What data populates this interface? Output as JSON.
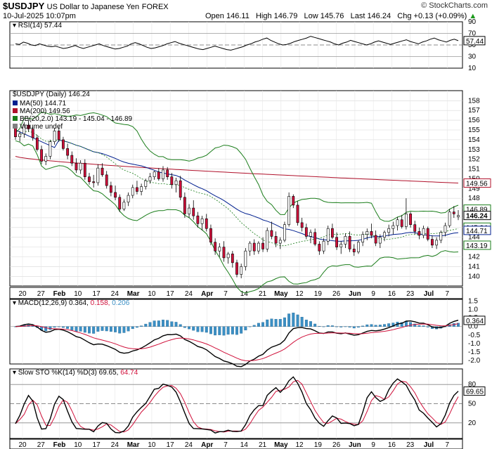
{
  "header": {
    "symbol": "$USDJPY",
    "name": "US Dollar to Japanese Yen",
    "exchange": "FOREX",
    "date": "10-Jul-2025 10:07pm",
    "watermark": "© StockCharts.com",
    "quote": {
      "open_label": "Open",
      "open": "146.11",
      "high_label": "High",
      "high": "146.79",
      "low_label": "Low",
      "low": "145.76",
      "last_label": "Last",
      "last": "146.24",
      "chg_label": "Chg",
      "chg": "+0.13 (+0.09%)",
      "chg_arrow": "▲"
    }
  },
  "rsi": {
    "label": "RSI(14) 57.44",
    "value": "57.44",
    "ticks": [
      "90",
      "70",
      "50",
      "30",
      "10"
    ],
    "values": [
      52,
      51,
      55,
      53,
      50,
      49,
      52,
      50,
      48,
      47,
      48,
      46,
      44,
      45,
      47,
      49,
      46,
      44,
      46,
      48,
      50,
      52,
      49,
      47,
      45,
      43,
      44,
      46,
      48,
      52,
      54,
      52,
      49,
      46,
      44,
      45,
      47,
      49,
      52,
      54,
      56,
      53,
      51,
      49,
      47,
      45,
      43,
      42,
      44,
      46,
      48,
      46,
      44,
      42,
      41,
      43,
      45,
      47,
      50,
      52,
      55,
      57,
      60,
      62,
      58,
      55,
      52,
      50,
      51,
      53,
      56,
      58,
      60,
      62,
      65,
      63,
      61,
      59,
      57,
      55,
      52,
      50,
      53,
      55,
      58,
      56,
      54,
      52,
      50,
      52,
      55,
      57,
      55,
      53,
      51,
      53,
      55,
      57,
      59,
      56,
      54,
      52,
      55,
      57,
      60,
      62,
      59,
      57,
      55,
      58,
      60,
      57.44
    ]
  },
  "price": {
    "label": "$USDJPY (Daily) 146.24",
    "legend": [
      {
        "text": "MA(50) 144.71",
        "color": "#001f8f"
      },
      {
        "text": "MA(200) 149.56",
        "color": "#b0102a"
      },
      {
        "text": "BB(20,2.0) 143.19 - 145.04 - 146.89",
        "color": "#1a7d1a"
      },
      {
        "text": "Volume undef",
        "color": "#808080"
      }
    ],
    "yticks": [
      "158",
      "157",
      "156",
      "155",
      "154",
      "153",
      "152",
      "151",
      "150",
      "149",
      "148",
      "147",
      "146",
      "145",
      "144",
      "143",
      "142",
      "141",
      "140"
    ],
    "badges": [
      {
        "text": "149.56",
        "value": 149.56,
        "color": "#b0102a"
      },
      {
        "text": "146.89",
        "value": 146.89,
        "color": "#1a7d1a"
      },
      {
        "text": "146.24",
        "value": 146.24,
        "color": "#000"
      },
      {
        "text": "145.04",
        "value": 145.04,
        "color": "#1a7d1a"
      },
      {
        "text": "144.71",
        "value": 144.71,
        "color": "#001f8f"
      },
      {
        "text": "143.19",
        "value": 143.19,
        "color": "#1a7d1a"
      }
    ],
    "colors": {
      "up": "#ffffff",
      "down": "#d0103a",
      "outline": "#000000",
      "ma50": "#001f8f",
      "ma200": "#b0102a",
      "bb": "#1a7d1a"
    }
  },
  "xaxis": {
    "labels": [
      "20",
      "27",
      "Feb",
      "10",
      "17",
      "24",
      "Mar",
      "10",
      "17",
      "24",
      "Apr",
      "7",
      "14",
      "21",
      "May",
      "12",
      "19",
      "26",
      "Jun",
      "9",
      "16",
      "23",
      "Jul",
      "7"
    ],
    "bold": [
      "Feb",
      "Mar",
      "Apr",
      "May",
      "Jun",
      "Jul"
    ]
  },
  "macd": {
    "label": "MACD(12,26,9) 0.364, 0.158, 0.206",
    "v1": "0.364",
    "v2": "0.158",
    "v3": "0.206",
    "ticks": [
      "1.5",
      "1.0",
      "0.5",
      "0.0",
      "-0.5",
      "-1.0",
      "-1.5",
      "-2.0"
    ],
    "colors": {
      "macd": "#000",
      "signal": "#d0103a",
      "hist": "#3b8fc4"
    }
  },
  "sto": {
    "label": "Slow STO %K(14) %D(3) 69.65, 64.74",
    "k": "69.65",
    "d": "64.74",
    "ticks": [
      "80",
      "50",
      "20"
    ]
  },
  "chart_data": [
    {
      "type": "line",
      "title": "RSI(14) 57.44",
      "y": "see rsi.values",
      "ylim": [
        10,
        90
      ]
    },
    {
      "type": "candlestick",
      "title": "$USDJPY (Daily) 146.24",
      "ylim": [
        140,
        158
      ],
      "ohlc": [
        [
          155.2,
          155.6,
          154.0,
          154.3
        ],
        [
          154.3,
          154.9,
          153.8,
          154.6
        ],
        [
          154.6,
          155.8,
          154.2,
          155.5
        ],
        [
          155.5,
          156.0,
          154.8,
          155.1
        ],
        [
          155.1,
          155.3,
          153.9,
          154.2
        ],
        [
          154.2,
          154.5,
          152.8,
          153.0
        ],
        [
          153.0,
          153.4,
          151.5,
          151.8
        ],
        [
          151.8,
          152.6,
          151.4,
          152.3
        ],
        [
          152.3,
          154.0,
          152.0,
          153.8
        ],
        [
          153.8,
          155.2,
          153.5,
          154.9
        ],
        [
          154.9,
          155.3,
          153.8,
          154.0
        ],
        [
          154.0,
          154.3,
          152.9,
          153.1
        ],
        [
          153.1,
          153.6,
          152.0,
          152.4
        ],
        [
          152.4,
          152.8,
          151.3,
          151.6
        ],
        [
          151.6,
          152.1,
          150.6,
          150.9
        ],
        [
          150.9,
          151.9,
          150.5,
          151.6
        ],
        [
          151.6,
          152.0,
          149.9,
          150.2
        ],
        [
          150.2,
          150.6,
          149.4,
          149.7
        ],
        [
          149.7,
          150.4,
          149.1,
          149.6
        ],
        [
          149.6,
          151.5,
          149.3,
          151.1
        ],
        [
          151.1,
          151.6,
          150.2,
          150.4
        ],
        [
          150.4,
          150.8,
          149.0,
          149.3
        ],
        [
          149.3,
          149.7,
          148.2,
          148.6
        ],
        [
          148.6,
          149.3,
          147.8,
          148.1
        ],
        [
          148.1,
          148.4,
          146.6,
          146.9
        ],
        [
          146.9,
          147.9,
          146.7,
          147.6
        ],
        [
          147.6,
          148.6,
          147.2,
          148.3
        ],
        [
          148.3,
          149.4,
          148.0,
          149.1
        ],
        [
          149.1,
          149.8,
          148.4,
          148.7
        ],
        [
          148.7,
          149.5,
          148.3,
          149.2
        ],
        [
          149.2,
          150.0,
          148.9,
          149.8
        ],
        [
          149.8,
          150.6,
          149.5,
          150.2
        ],
        [
          150.2,
          150.8,
          149.9,
          150.7
        ],
        [
          150.7,
          151.1,
          149.8,
          150.0
        ],
        [
          150.0,
          151.3,
          149.7,
          150.9
        ],
        [
          150.9,
          151.2,
          149.9,
          150.2
        ],
        [
          150.2,
          150.6,
          149.0,
          149.4
        ],
        [
          149.4,
          150.1,
          148.6,
          149.8
        ],
        [
          149.8,
          150.3,
          147.8,
          148.1
        ],
        [
          148.1,
          148.6,
          146.0,
          146.4
        ],
        [
          146.4,
          147.4,
          146.0,
          147.0
        ],
        [
          147.0,
          147.8,
          145.8,
          146.2
        ],
        [
          146.2,
          146.6,
          145.0,
          145.4
        ],
        [
          145.4,
          146.2,
          144.7,
          145.9
        ],
        [
          145.9,
          146.4,
          144.6,
          144.9
        ],
        [
          144.9,
          145.3,
          143.2,
          143.5
        ],
        [
          143.5,
          143.9,
          142.2,
          142.6
        ],
        [
          142.6,
          143.4,
          142.0,
          143.0
        ],
        [
          143.0,
          143.6,
          141.5,
          141.9
        ],
        [
          141.9,
          142.5,
          141.3,
          142.3
        ],
        [
          142.3,
          142.6,
          140.9,
          141.4
        ],
        [
          141.4,
          141.7,
          139.9,
          140.2
        ],
        [
          140.2,
          141.3,
          139.8,
          141.0
        ],
        [
          141.0,
          142.9,
          140.6,
          142.6
        ],
        [
          142.6,
          143.6,
          142.1,
          143.4
        ],
        [
          143.4,
          143.8,
          142.2,
          142.6
        ],
        [
          142.6,
          143.6,
          142.3,
          143.4
        ],
        [
          143.4,
          144.0,
          142.5,
          142.8
        ],
        [
          142.8,
          145.0,
          142.5,
          144.7
        ],
        [
          144.7,
          145.6,
          143.8,
          144.1
        ],
        [
          144.1,
          144.6,
          143.0,
          143.4
        ],
        [
          143.4,
          144.0,
          142.8,
          143.7
        ],
        [
          143.7,
          145.6,
          143.5,
          145.3
        ],
        [
          145.3,
          148.6,
          145.1,
          148.2
        ],
        [
          148.2,
          148.4,
          147.0,
          147.3
        ],
        [
          147.3,
          147.7,
          145.2,
          145.5
        ],
        [
          145.5,
          146.0,
          144.6,
          145.0
        ],
        [
          145.0,
          145.4,
          143.8,
          144.1
        ],
        [
          144.1,
          144.8,
          143.4,
          144.5
        ],
        [
          144.5,
          144.9,
          143.1,
          143.3
        ],
        [
          143.3,
          143.6,
          142.2,
          142.6
        ],
        [
          142.6,
          143.9,
          142.3,
          143.6
        ],
        [
          143.6,
          145.2,
          143.2,
          144.9
        ],
        [
          144.9,
          145.4,
          143.8,
          144.0
        ],
        [
          144.0,
          144.5,
          142.7,
          143.0
        ],
        [
          143.0,
          143.6,
          142.3,
          143.3
        ],
        [
          143.3,
          144.4,
          142.9,
          144.1
        ],
        [
          144.1,
          144.6,
          142.5,
          142.8
        ],
        [
          142.8,
          143.3,
          142.1,
          142.5
        ],
        [
          142.5,
          143.7,
          142.3,
          143.5
        ],
        [
          143.5,
          144.6,
          143.1,
          144.3
        ],
        [
          144.3,
          144.9,
          143.7,
          144.6
        ],
        [
          144.6,
          145.4,
          143.9,
          144.2
        ],
        [
          144.2,
          144.7,
          143.1,
          143.4
        ],
        [
          143.4,
          144.3,
          142.9,
          144.0
        ],
        [
          144.0,
          144.7,
          143.6,
          144.5
        ],
        [
          144.5,
          145.3,
          144.1,
          144.9
        ],
        [
          144.9,
          145.6,
          144.3,
          145.2
        ],
        [
          145.2,
          146.1,
          144.7,
          145.8
        ],
        [
          145.8,
          146.3,
          144.9,
          145.1
        ],
        [
          145.1,
          148.0,
          144.8,
          146.4
        ],
        [
          146.4,
          146.6,
          145.0,
          145.3
        ],
        [
          145.3,
          145.7,
          144.3,
          144.6
        ],
        [
          144.6,
          145.0,
          143.8,
          144.2
        ],
        [
          144.2,
          145.2,
          143.9,
          144.9
        ],
        [
          144.9,
          145.1,
          143.6,
          143.8
        ],
        [
          143.8,
          144.2,
          142.9,
          143.2
        ],
        [
          143.2,
          144.0,
          142.8,
          143.7
        ],
        [
          143.7,
          144.7,
          143.4,
          144.5
        ],
        [
          144.5,
          145.5,
          144.1,
          145.2
        ],
        [
          145.2,
          146.9,
          145.0,
          146.6
        ],
        [
          146.6,
          147.2,
          146.0,
          146.4
        ],
        [
          146.11,
          146.79,
          145.76,
          146.24
        ]
      ]
    }
  ]
}
